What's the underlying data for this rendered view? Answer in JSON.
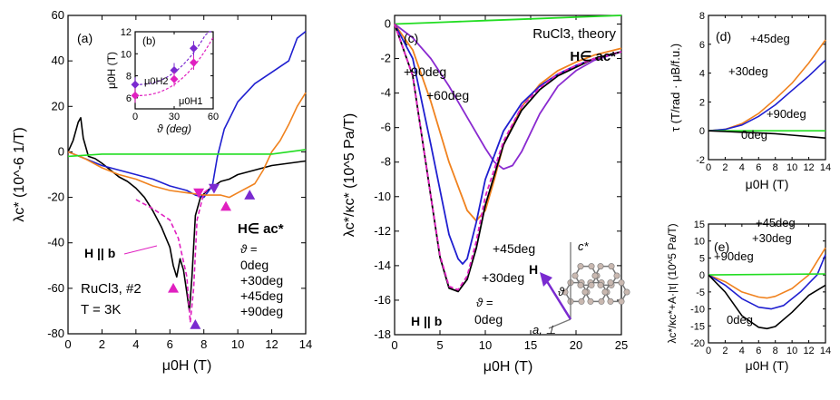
{
  "chart_data": [
    {
      "id": "a",
      "type": "line",
      "panel_label": "(a)",
      "title": "",
      "xlabel": "μ0H (T)",
      "ylabel": "λc* (10^-6 1/T)",
      "xlim": [
        0,
        14
      ],
      "ylim": [
        -80,
        60
      ],
      "xticks": [
        0,
        2,
        4,
        6,
        8,
        10,
        12,
        14
      ],
      "yticks": [
        -80,
        -60,
        -40,
        -20,
        0,
        20,
        40,
        60
      ],
      "annotations": {
        "sample": "RuCl3, #2",
        "temperature": "T = 3K",
        "field_dir": "H∈ ac*",
        "theta_eq": "ϑ =",
        "h_par_b": "H || b"
      },
      "legend_location": "lower-right",
      "series": [
        {
          "name": "0deg",
          "color": "#000000",
          "x": [
            0,
            0.3,
            0.6,
            0.75,
            0.9,
            1.2,
            1.6,
            2,
            2.5,
            3,
            3.5,
            4,
            4.5,
            5,
            5.5,
            6,
            6.2,
            6.4,
            6.6,
            6.8,
            7,
            7.15,
            7.3,
            7.5,
            7.8,
            8.2,
            8.6,
            9,
            9.5,
            10,
            11,
            12,
            13,
            14
          ],
          "y": [
            0,
            5,
            13,
            15,
            6,
            -2,
            -3,
            -5,
            -8,
            -11,
            -13,
            -16,
            -20,
            -26,
            -33,
            -42,
            -50,
            -55,
            -47,
            -52,
            -62,
            -70,
            -55,
            -28,
            -20,
            -17,
            -15,
            -13,
            -12,
            -10,
            -8,
            -6,
            -5,
            -4
          ]
        },
        {
          "name": "+30deg",
          "color": "#1f1fd0",
          "x": [
            0,
            1,
            2,
            3,
            4,
            5,
            6,
            7,
            7.5,
            8,
            8.5,
            8.8,
            9.2,
            9.6,
            10,
            11,
            12,
            13,
            13.5,
            14
          ],
          "y": [
            0,
            -3,
            -6,
            -8,
            -10,
            -12,
            -15,
            -17,
            -19,
            -20,
            -15,
            -2,
            10,
            16,
            22,
            30,
            35,
            40,
            50,
            53
          ]
        },
        {
          "name": "+45deg",
          "color": "#f0821e",
          "x": [
            0,
            1,
            2,
            3,
            4,
            5,
            6,
            7,
            8,
            9,
            9.5,
            10,
            11,
            11.5,
            12,
            12.5,
            13,
            13.5,
            14
          ],
          "y": [
            0,
            -3,
            -7,
            -10,
            -12,
            -15,
            -17,
            -18,
            -19,
            -19,
            -20,
            -18,
            -14,
            -8,
            0,
            5,
            12,
            20,
            26
          ]
        },
        {
          "name": "+90deg",
          "color": "#22dd22",
          "x": [
            0,
            2,
            4,
            6,
            8,
            10,
            12,
            14
          ],
          "y": [
            -2,
            -1,
            -1,
            -1,
            -1,
            -1,
            -1,
            1
          ]
        },
        {
          "name": "H || b",
          "color": "#e020c0",
          "dashed": true,
          "x": [
            4,
            5,
            6,
            6.5,
            7,
            7.2,
            7.4,
            7.6,
            8,
            8.5
          ],
          "y": [
            -21,
            -25,
            -30,
            -38,
            -55,
            -75,
            -60,
            -30,
            -18,
            -15
          ]
        }
      ],
      "markers": [
        {
          "x": 6.2,
          "y": -60,
          "dir": "up",
          "color": "#e020c0"
        },
        {
          "x": 7.5,
          "y": -76,
          "dir": "up",
          "color": "#7a2ad0"
        },
        {
          "x": 7.7,
          "y": -18,
          "dir": "down",
          "color": "#e020c0"
        },
        {
          "x": 8.6,
          "y": -16,
          "dir": "down",
          "color": "#7a2ad0"
        },
        {
          "x": 9.3,
          "y": -24,
          "dir": "up",
          "color": "#e020c0"
        },
        {
          "x": 10.7,
          "y": -19,
          "dir": "up",
          "color": "#7a2ad0"
        }
      ]
    },
    {
      "id": "b",
      "type": "scatter",
      "panel_label": "(b)",
      "title": "",
      "xlabel": "ϑ (deg)",
      "ylabel": "μ0H (T)",
      "xlim": [
        0,
        60
      ],
      "ylim": [
        5,
        12
      ],
      "xticks": [
        0,
        30,
        60
      ],
      "yticks": [
        6,
        8,
        10,
        12
      ],
      "series": [
        {
          "name": "μ0H2",
          "color": "#7a2ad0",
          "x": [
            0,
            30,
            45
          ],
          "y": [
            7.2,
            8.5,
            10.5
          ]
        },
        {
          "name": "μ0H1",
          "color": "#e020c0",
          "x": [
            0,
            30,
            45
          ],
          "y": [
            6.2,
            7.7,
            9.2
          ]
        }
      ]
    },
    {
      "id": "c",
      "type": "line",
      "panel_label": "(c)",
      "title": "RuCl3, theory",
      "xlabel": "μ0H (T)",
      "ylabel": "λc*/κc* (10^5 Pa/T)",
      "xlim": [
        0,
        25
      ],
      "ylim": [
        -18,
        0.5
      ],
      "xticks": [
        0,
        5,
        10,
        15,
        20,
        25
      ],
      "yticks": [
        -18,
        -16,
        -14,
        -12,
        -10,
        -8,
        -6,
        -4,
        -2,
        0
      ],
      "annotations": {
        "field_dir": "H∈ ac*",
        "theta_eq": "ϑ =",
        "h_par_b": "H || b",
        "vec_h": "H",
        "vec_c": "c*",
        "vec_a": "a, ⊥",
        "angle": "ϑ"
      },
      "series": [
        {
          "name": "+90deg",
          "color": "#22dd22",
          "x": [
            0,
            5,
            10,
            15,
            20,
            25
          ],
          "y": [
            0,
            0.1,
            0.2,
            0.3,
            0.4,
            0.5
          ]
        },
        {
          "name": "+60deg",
          "color": "#8a2ad0",
          "x": [
            0,
            2,
            4,
            6,
            8,
            10,
            11,
            12,
            13,
            14,
            16,
            18,
            20,
            22,
            25
          ],
          "y": [
            0,
            -0.8,
            -2,
            -3.6,
            -5.4,
            -7.2,
            -8,
            -8.4,
            -8.2,
            -7.4,
            -5.2,
            -3.6,
            -2.7,
            -2.1,
            -1.6
          ]
        },
        {
          "name": "+45deg",
          "color": "#f0821e",
          "x": [
            0,
            2,
            4,
            6,
            8,
            9,
            10,
            11,
            12,
            14,
            16,
            18,
            20,
            22,
            25
          ],
          "y": [
            0,
            -1.5,
            -4.5,
            -8,
            -10.8,
            -11.4,
            -10.8,
            -9,
            -7,
            -4.8,
            -3.5,
            -2.7,
            -2.2,
            -1.8,
            -1.4
          ]
        },
        {
          "name": "+30deg",
          "color": "#1f1fd0",
          "x": [
            0,
            2,
            4,
            6,
            7,
            7.5,
            8,
            9,
            10,
            12,
            14,
            16,
            18,
            20,
            22,
            25
          ],
          "y": [
            0,
            -2,
            -7,
            -12.2,
            -13.6,
            -13.9,
            -13.6,
            -11.5,
            -9,
            -6.2,
            -4.6,
            -3.6,
            -2.9,
            -2.4,
            -2,
            -1.6
          ]
        },
        {
          "name": "0deg",
          "color": "#000000",
          "x": [
            0,
            2,
            4,
            5,
            6,
            7,
            8,
            9,
            10,
            12,
            14,
            16,
            18,
            20,
            22,
            25
          ],
          "y": [
            0,
            -3,
            -10,
            -13.5,
            -15.3,
            -15.5,
            -14.8,
            -13,
            -10.5,
            -7,
            -5,
            -3.8,
            -3,
            -2.5,
            -2,
            -1.6
          ]
        },
        {
          "name": "H || b",
          "color": "#e020c0",
          "dashed": true,
          "x": [
            0,
            2,
            4,
            5,
            6,
            7,
            8,
            9,
            10,
            12,
            14,
            16,
            18,
            20,
            22,
            25
          ],
          "y": [
            0,
            -3,
            -10,
            -13.4,
            -15.2,
            -15.4,
            -14.6,
            -12.6,
            -10,
            -6.8,
            -4.8,
            -3.7,
            -2.9,
            -2.4,
            -2,
            -1.6
          ]
        }
      ]
    },
    {
      "id": "d",
      "type": "line",
      "panel_label": "(d)",
      "title": "",
      "xlabel": "μ0H (T)",
      "ylabel": "τ (T/rad · μB/f.u.)",
      "xlim": [
        0,
        14
      ],
      "ylim": [
        -2,
        8
      ],
      "xticks": [
        0,
        2,
        4,
        6,
        8,
        10,
        12,
        14
      ],
      "xtick_labels": [
        "0",
        "2",
        "4",
        "6",
        "8",
        "10",
        "12",
        "14"
      ],
      "yticks": [
        -2,
        0,
        2,
        4,
        6,
        8
      ],
      "series": [
        {
          "name": "+45deg",
          "color": "#f0821e",
          "x": [
            0,
            2,
            4,
            6,
            8,
            10,
            12,
            14
          ],
          "y": [
            0,
            0.1,
            0.5,
            1.2,
            2.2,
            3.3,
            4.7,
            6.3
          ]
        },
        {
          "name": "+30deg",
          "color": "#1f1fd0",
          "x": [
            0,
            2,
            4,
            6,
            8,
            10,
            12,
            14
          ],
          "y": [
            0,
            0.1,
            0.4,
            1,
            1.8,
            2.8,
            3.8,
            4.9
          ]
        },
        {
          "name": "+90deg",
          "color": "#22dd22",
          "x": [
            0,
            14
          ],
          "y": [
            0,
            0
          ]
        },
        {
          "name": "0deg",
          "color": "#000000",
          "x": [
            0,
            2,
            4,
            6,
            8,
            10,
            12,
            14
          ],
          "y": [
            0,
            -0.05,
            -0.1,
            -0.15,
            -0.2,
            -0.3,
            -0.4,
            -0.5
          ]
        }
      ]
    },
    {
      "id": "e",
      "type": "line",
      "panel_label": "(e)",
      "title": "",
      "xlabel": "μ0H (T)",
      "ylabel": "λc*/κc*+A·|τ| (10^5 Pa/T)",
      "xlim": [
        0,
        14
      ],
      "ylim": [
        -20,
        15
      ],
      "xticks": [
        0,
        2,
        4,
        6,
        8,
        10,
        12,
        14
      ],
      "yticks": [
        -20,
        -15,
        -10,
        -5,
        0,
        5,
        10,
        15
      ],
      "series": [
        {
          "name": "+45deg",
          "color": "#f0821e",
          "x": [
            0,
            2,
            4,
            6,
            7,
            8,
            10,
            12,
            14
          ],
          "y": [
            0,
            -2,
            -5,
            -6.5,
            -6.8,
            -6.3,
            -4,
            0,
            8
          ]
        },
        {
          "name": "+30deg",
          "color": "#1f1fd0",
          "x": [
            0,
            2,
            4,
            6,
            7.5,
            9,
            11,
            13,
            14
          ],
          "y": [
            0,
            -3,
            -7,
            -9.5,
            -10,
            -9,
            -5,
            0,
            6
          ]
        },
        {
          "name": "+90deg",
          "color": "#22dd22",
          "x": [
            0,
            14
          ],
          "y": [
            0,
            0.3
          ]
        },
        {
          "name": "0deg",
          "color": "#000000",
          "x": [
            0,
            2,
            4,
            6,
            7,
            8,
            10,
            12,
            14
          ],
          "y": [
            0,
            -5,
            -12,
            -15.4,
            -15.8,
            -15.2,
            -11,
            -6,
            -3
          ]
        }
      ]
    }
  ]
}
